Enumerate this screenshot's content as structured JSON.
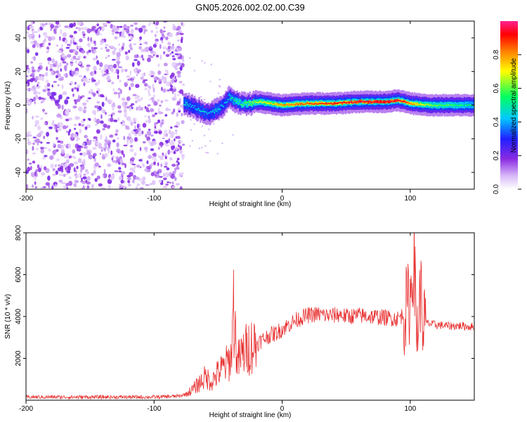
{
  "chart_data": [
    {
      "type": "heatmap",
      "title": "GN05.2026.002.02.00.C39",
      "xlabel": "Height of straight line (km)",
      "ylabel": "Frequency (Hz)",
      "xlim": [
        -200,
        150
      ],
      "ylim": [
        -50,
        50
      ],
      "x_ticks": [
        -200,
        -100,
        0,
        100
      ],
      "x_tick_labels": [
        "-200",
        "-100",
        "0",
        "100"
      ],
      "y_ticks": [
        40,
        20,
        0,
        -20,
        -40
      ],
      "y_tick_labels": [
        "40",
        "20",
        "0",
        "-20",
        "-40"
      ],
      "colorbar": {
        "label": "Normalized spectral amplitude",
        "range": [
          0,
          1
        ],
        "ticks": [
          0.0,
          0.2,
          0.4,
          0.6,
          0.8
        ],
        "tick_labels": [
          "0.0",
          "0.2",
          "0.4",
          "0.6",
          "0.8"
        ]
      },
      "noise_region": {
        "x_range": [
          -200,
          -77
        ],
        "amplitude": "low (0.05-0.2)"
      },
      "track": [
        {
          "x": -77,
          "y": 1,
          "amp": 0.35
        },
        {
          "x": -70,
          "y": -1,
          "amp": 0.3
        },
        {
          "x": -62,
          "y": -4,
          "amp": 0.35
        },
        {
          "x": -57,
          "y": -5,
          "amp": 0.3
        },
        {
          "x": -52,
          "y": -3,
          "amp": 0.35
        },
        {
          "x": -46,
          "y": 0,
          "amp": 0.3
        },
        {
          "x": -42,
          "y": 5,
          "amp": 0.35
        },
        {
          "x": -38,
          "y": 3,
          "amp": 0.4
        },
        {
          "x": -32,
          "y": 1,
          "amp": 0.45
        },
        {
          "x": -25,
          "y": 1,
          "amp": 0.5
        },
        {
          "x": -18,
          "y": 2,
          "amp": 0.55
        },
        {
          "x": -10,
          "y": 1,
          "amp": 0.6
        },
        {
          "x": 0,
          "y": 0,
          "amp": 0.7
        },
        {
          "x": 20,
          "y": 1,
          "amp": 0.75
        },
        {
          "x": 40,
          "y": 1,
          "amp": 0.8
        },
        {
          "x": 60,
          "y": 2,
          "amp": 0.85
        },
        {
          "x": 80,
          "y": 2,
          "amp": 0.9
        },
        {
          "x": 90,
          "y": 3,
          "amp": 0.85
        },
        {
          "x": 100,
          "y": 1,
          "amp": 0.7
        },
        {
          "x": 115,
          "y": 0,
          "amp": 0.5
        },
        {
          "x": 130,
          "y": 0,
          "amp": 0.45
        },
        {
          "x": 150,
          "y": 0,
          "amp": 0.4
        }
      ]
    },
    {
      "type": "line",
      "xlabel": "Height of straight line (km)",
      "ylabel": "SNR (10 * v/v)",
      "xlim": [
        -200,
        150
      ],
      "ylim": [
        0,
        8000
      ],
      "x_ticks": [
        -200,
        -100,
        0,
        100
      ],
      "x_tick_labels": [
        "-200",
        "-100",
        "0",
        "100"
      ],
      "y_ticks": [
        2000,
        4000,
        6000,
        8000
      ],
      "y_tick_labels": [
        "2000",
        "4000",
        "6000",
        "8000"
      ],
      "series": [
        {
          "name": "SNR",
          "color": "#e83030",
          "x": [
            -200,
            -180,
            -160,
            -140,
            -120,
            -100,
            -90,
            -80,
            -75,
            -70,
            -65,
            -60,
            -55,
            -50,
            -45,
            -40,
            -38,
            -35,
            -30,
            -25,
            -20,
            -15,
            -10,
            -5,
            0,
            5,
            10,
            15,
            20,
            25,
            30,
            35,
            40,
            45,
            50,
            60,
            70,
            80,
            90,
            95,
            100,
            103,
            105,
            108,
            110,
            115,
            120,
            130,
            140,
            150
          ],
          "y": [
            150,
            150,
            150,
            150,
            150,
            150,
            170,
            200,
            300,
            500,
            800,
            1100,
            900,
            1300,
            1600,
            2000,
            4500,
            1800,
            2300,
            2600,
            2700,
            2900,
            3100,
            3200,
            3400,
            3600,
            3800,
            3950,
            4050,
            4100,
            4100,
            4050,
            4050,
            4100,
            4000,
            4050,
            4000,
            3950,
            3900,
            4100,
            4800,
            7000,
            3000,
            5200,
            3800,
            3650,
            3600,
            3550,
            3550,
            3500
          ]
        }
      ]
    }
  ]
}
